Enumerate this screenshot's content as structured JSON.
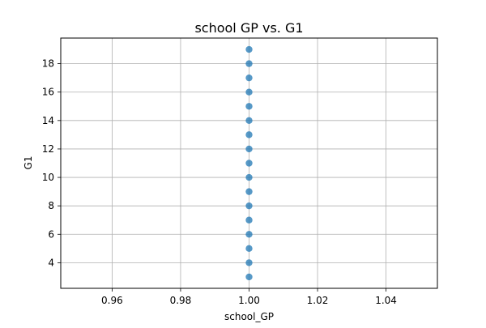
{
  "chart_data": {
    "type": "scatter",
    "title": "school GP vs. G1",
    "xlabel": "school_GP",
    "ylabel": "G1",
    "xlim": [
      0.945,
      1.055
    ],
    "ylim": [
      2.2,
      19.8
    ],
    "xticks": [
      0.96,
      0.98,
      1.0,
      1.02,
      1.04
    ],
    "xtick_labels": [
      "0.96",
      "0.98",
      "1.00",
      "1.02",
      "1.04"
    ],
    "yticks": [
      4,
      6,
      8,
      10,
      12,
      14,
      16,
      18
    ],
    "ytick_labels": [
      "4",
      "6",
      "8",
      "10",
      "12",
      "14",
      "16",
      "18"
    ],
    "grid": true,
    "legend": "none",
    "marker_color": "#1f77b4",
    "series": [
      {
        "x": [
          1.0,
          1.0,
          1.0,
          1.0,
          1.0,
          1.0,
          1.0,
          1.0,
          1.0,
          1.0,
          1.0,
          1.0,
          1.0,
          1.0,
          1.0,
          1.0,
          1.0
        ],
        "y": [
          3,
          4,
          5,
          6,
          7,
          8,
          9,
          10,
          11,
          12,
          13,
          14,
          15,
          16,
          17,
          18,
          19
        ]
      }
    ]
  }
}
